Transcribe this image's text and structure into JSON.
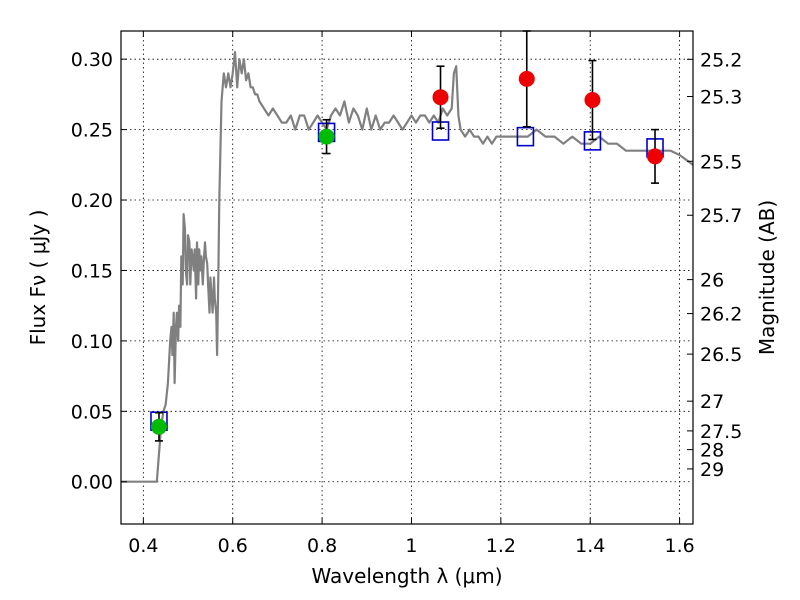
{
  "chart_data": {
    "type": "line",
    "xlabel": "Wavelength  λ (μm)",
    "ylabel": "Flux  Fν  ( μJy )",
    "ylabel_right": "Magnitude (AB)",
    "xlim": [
      0.35,
      1.63
    ],
    "ylim": [
      -0.03,
      0.32
    ],
    "grid": true,
    "x_ticks": [
      {
        "value": 0.4,
        "label": "0.4"
      },
      {
        "value": 0.6,
        "label": "0.6"
      },
      {
        "value": 0.8,
        "label": "0.8"
      },
      {
        "value": 1.0,
        "label": "1"
      },
      {
        "value": 1.2,
        "label": "1.2"
      },
      {
        "value": 1.4,
        "label": "1.4"
      },
      {
        "value": 1.6,
        "label": "1.6"
      }
    ],
    "y_ticks": [
      {
        "value": 0.0,
        "label": "0.00"
      },
      {
        "value": 0.05,
        "label": "0.05"
      },
      {
        "value": 0.1,
        "label": "0.10"
      },
      {
        "value": 0.15,
        "label": "0.15"
      },
      {
        "value": 0.2,
        "label": "0.20"
      },
      {
        "value": 0.25,
        "label": "0.25"
      },
      {
        "value": 0.3,
        "label": "0.30"
      }
    ],
    "right_ticks": [
      {
        "label": "25.2",
        "flux": 0.2999
      },
      {
        "label": "25.3",
        "flux": 0.2735
      },
      {
        "label": "25.5",
        "flux": 0.2275
      },
      {
        "label": "25.7",
        "flux": 0.1892
      },
      {
        "label": "26",
        "flux": 0.1435
      },
      {
        "label": "26.2",
        "flux": 0.1194
      },
      {
        "label": "26.5",
        "flux": 0.0906
      },
      {
        "label": "27",
        "flux": 0.0572
      },
      {
        "label": "27.5",
        "flux": 0.0361
      },
      {
        "label": "28",
        "flux": 0.0228
      },
      {
        "label": "29",
        "flux": 0.0091
      }
    ],
    "series": [
      {
        "type": "line",
        "color": "#808080",
        "x": [
          0.35,
          0.43,
          0.435,
          0.44,
          0.445,
          0.45,
          0.455,
          0.46,
          0.463,
          0.465,
          0.468,
          0.47,
          0.473,
          0.475,
          0.478,
          0.48,
          0.483,
          0.485,
          0.488,
          0.49,
          0.493,
          0.495,
          0.498,
          0.5,
          0.503,
          0.505,
          0.508,
          0.51,
          0.513,
          0.515,
          0.518,
          0.52,
          0.523,
          0.525,
          0.528,
          0.53,
          0.533,
          0.535,
          0.538,
          0.54,
          0.543,
          0.545,
          0.548,
          0.55,
          0.553,
          0.555,
          0.558,
          0.56,
          0.563,
          0.565,
          0.568,
          0.57,
          0.575,
          0.58,
          0.585,
          0.59,
          0.595,
          0.6,
          0.605,
          0.61,
          0.615,
          0.62,
          0.625,
          0.63,
          0.635,
          0.64,
          0.645,
          0.65,
          0.655,
          0.66,
          0.67,
          0.68,
          0.69,
          0.7,
          0.71,
          0.72,
          0.73,
          0.74,
          0.75,
          0.76,
          0.77,
          0.78,
          0.79,
          0.8,
          0.81,
          0.82,
          0.83,
          0.84,
          0.85,
          0.86,
          0.87,
          0.88,
          0.89,
          0.9,
          0.91,
          0.92,
          0.93,
          0.94,
          0.95,
          0.96,
          0.97,
          0.98,
          0.99,
          1.0,
          1.01,
          1.02,
          1.03,
          1.04,
          1.05,
          1.06,
          1.07,
          1.08,
          1.09,
          1.095,
          1.1,
          1.105,
          1.11,
          1.12,
          1.13,
          1.14,
          1.15,
          1.16,
          1.17,
          1.18,
          1.19,
          1.2,
          1.22,
          1.24,
          1.26,
          1.28,
          1.3,
          1.32,
          1.34,
          1.36,
          1.38,
          1.4,
          1.42,
          1.44,
          1.46,
          1.48,
          1.5,
          1.52,
          1.54,
          1.56,
          1.58,
          1.6,
          1.63
        ],
        "y": [
          0.0,
          0.0,
          0.02,
          0.04,
          0.05,
          0.055,
          0.07,
          0.1,
          0.11,
          0.09,
          0.12,
          0.07,
          0.11,
          0.12,
          0.1,
          0.125,
          0.11,
          0.16,
          0.14,
          0.19,
          0.18,
          0.15,
          0.14,
          0.175,
          0.17,
          0.14,
          0.165,
          0.16,
          0.15,
          0.165,
          0.13,
          0.17,
          0.14,
          0.165,
          0.15,
          0.16,
          0.14,
          0.155,
          0.17,
          0.16,
          0.155,
          0.14,
          0.12,
          0.145,
          0.13,
          0.12,
          0.145,
          0.13,
          0.12,
          0.09,
          0.15,
          0.2,
          0.27,
          0.29,
          0.28,
          0.29,
          0.28,
          0.29,
          0.305,
          0.28,
          0.3,
          0.29,
          0.3,
          0.285,
          0.29,
          0.28,
          0.28,
          0.275,
          0.275,
          0.27,
          0.265,
          0.26,
          0.265,
          0.26,
          0.255,
          0.255,
          0.26,
          0.25,
          0.26,
          0.26,
          0.25,
          0.255,
          0.26,
          0.255,
          0.25,
          0.26,
          0.265,
          0.26,
          0.27,
          0.255,
          0.265,
          0.26,
          0.25,
          0.265,
          0.25,
          0.26,
          0.25,
          0.255,
          0.255,
          0.26,
          0.255,
          0.25,
          0.255,
          0.26,
          0.255,
          0.26,
          0.26,
          0.255,
          0.26,
          0.255,
          0.265,
          0.26,
          0.265,
          0.29,
          0.295,
          0.26,
          0.25,
          0.245,
          0.25,
          0.245,
          0.245,
          0.24,
          0.245,
          0.24,
          0.245,
          0.245,
          0.245,
          0.245,
          0.245,
          0.25,
          0.245,
          0.245,
          0.24,
          0.245,
          0.24,
          0.24,
          0.245,
          0.24,
          0.24,
          0.235,
          0.235,
          0.235,
          0.235,
          0.235,
          0.235,
          0.232,
          0.225
        ]
      },
      {
        "type": "scatter",
        "marker": "open-square",
        "color": "#0000cc",
        "x": [
          0.435,
          0.81,
          1.065,
          1.255,
          1.405,
          1.545
        ],
        "y": [
          0.043,
          0.248,
          0.249,
          0.245,
          0.242,
          0.237
        ]
      },
      {
        "type": "scatter",
        "marker": "circle",
        "color": "#00bb00",
        "x": [
          0.435,
          0.81
        ],
        "y": [
          0.039,
          0.245
        ],
        "yerr": [
          0.01,
          0.012
        ]
      },
      {
        "type": "scatter",
        "marker": "circle",
        "color": "#ee0000",
        "x": [
          1.065,
          1.258,
          1.405,
          1.545
        ],
        "y": [
          0.273,
          0.286,
          0.271,
          0.231
        ],
        "yerr": [
          0.022,
          0.034,
          0.028,
          0.019
        ]
      }
    ]
  }
}
